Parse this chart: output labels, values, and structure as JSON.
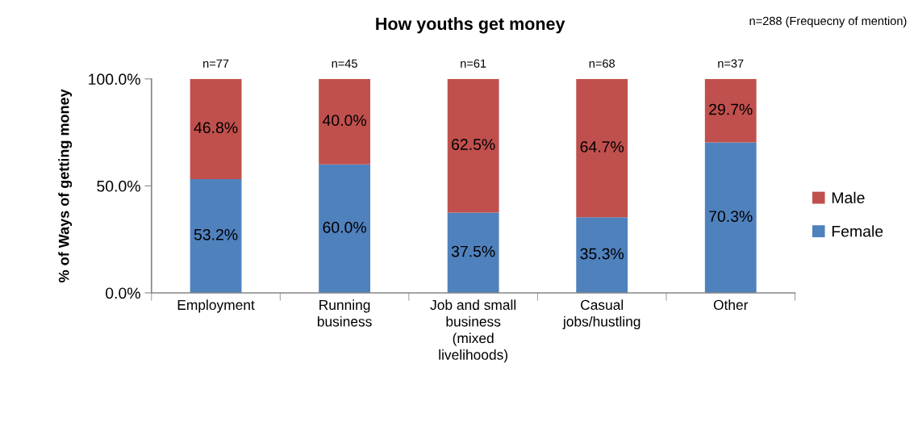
{
  "chart_data": {
    "type": "bar",
    "title": "How youths get money",
    "ylabel": "% of Ways of getting money",
    "categories": [
      "Employment",
      "Running\nbusiness",
      "Job and small\nbusiness\n(mixed\nlivelihoods)",
      "Casual\njobs/hustling",
      "Other"
    ],
    "series": [
      {
        "name": "Female",
        "color": "#4f81bd",
        "values": [
          53.2,
          60.0,
          37.5,
          35.3,
          70.3
        ],
        "value_labels": [
          "53.2%",
          "60.0%",
          "37.5%",
          "35.3%",
          "70.3%"
        ]
      },
      {
        "name": "Male",
        "color": "#c0504d",
        "values": [
          46.8,
          40.0,
          62.5,
          64.7,
          29.7
        ],
        "value_labels": [
          "46.8%",
          "40.0%",
          "62.5%",
          "64.7%",
          "29.7%"
        ]
      }
    ],
    "stacked": true,
    "ylim": [
      0,
      100
    ],
    "yticks": [
      {
        "value": 0,
        "label": "0.0%"
      },
      {
        "value": 50,
        "label": "50.0%"
      },
      {
        "value": 100,
        "label": "100.0%"
      }
    ],
    "annotations": [
      "n=288 (Frequecny of mention)",
      {
        "text": "n=77",
        "x": "Employment",
        "y": 100
      },
      {
        "text": "n=45",
        "x": "Running\nbusiness",
        "y": 100
      },
      {
        "text": "n=61",
        "x": "Job and small\nbusiness\n(mixed\nlivelihoods)",
        "y": 100
      },
      {
        "text": "n=68",
        "x": "Casual\njobs/hustling",
        "y": 100
      },
      {
        "text": "n=37",
        "x": "Other",
        "y": 100
      }
    ],
    "legend": "right",
    "grid": false
  }
}
